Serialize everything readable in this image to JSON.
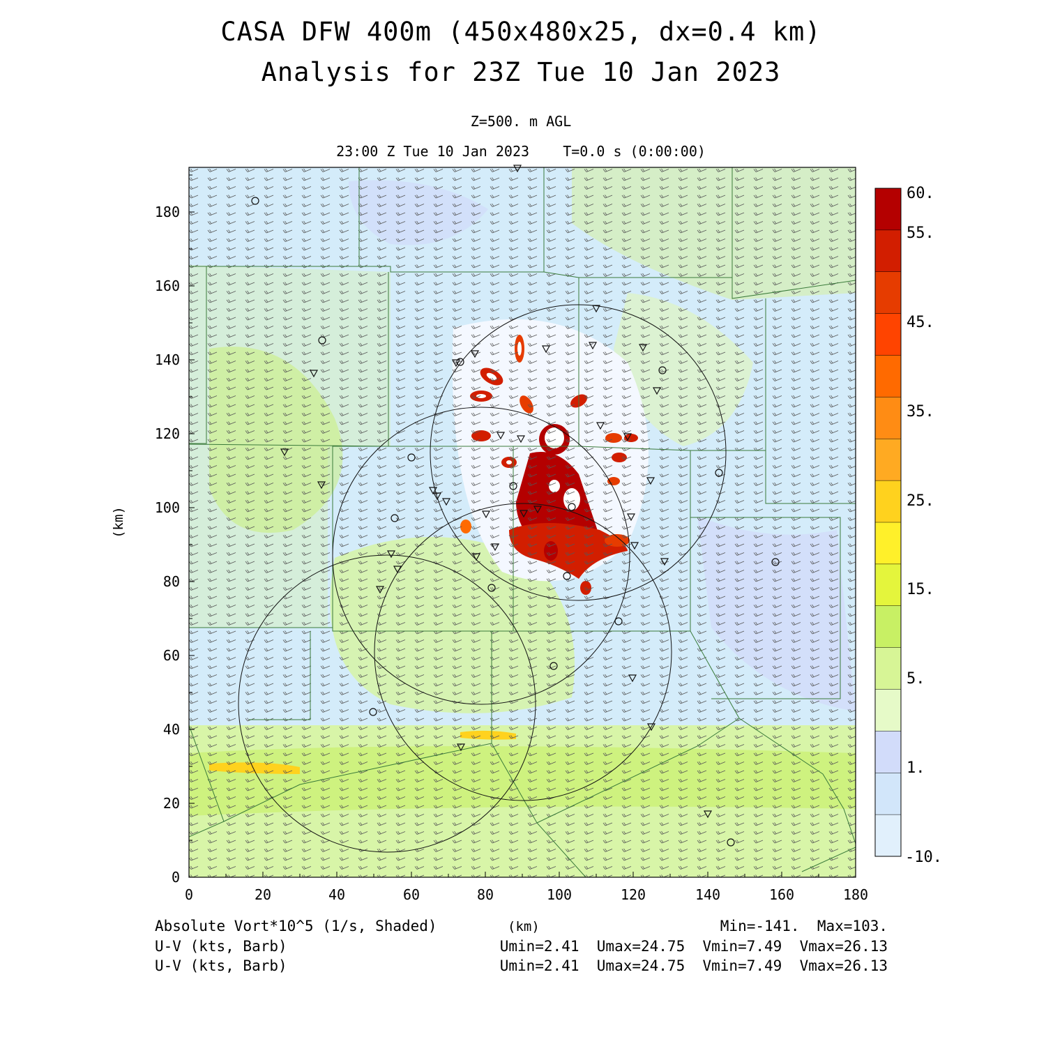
{
  "title": {
    "line1": "CASA DFW 400m (450x480x25, dx=0.4 km)",
    "line2": "Analysis for 23Z Tue 10 Jan 2023"
  },
  "subtitle": {
    "level": "Z=500. m AGL",
    "time": "23:00 Z Tue 10 Jan 2023    T=0.0 s (0:00:00)"
  },
  "axes": {
    "x_ticks": [
      "0",
      "20",
      "40",
      "60",
      "80",
      "100",
      "120",
      "140",
      "160",
      "180"
    ],
    "y_ticks": [
      "0",
      "20",
      "40",
      "60",
      "80",
      "100",
      "120",
      "140",
      "160",
      "180"
    ],
    "x_label": "(km)",
    "y_label": "(km)"
  },
  "colorbar": {
    "labels": [
      "60.",
      "55.",
      "45.",
      "35.",
      "25.",
      "15.",
      "5.",
      "1.",
      "-10."
    ],
    "colors": [
      "#b40000",
      "#d21e00",
      "#e63c00",
      "#ff4400",
      "#ff6a00",
      "#ff8c14",
      "#ffaa22",
      "#ffd21e",
      "#fff02a",
      "#e4f53c",
      "#c8f064",
      "#d7f596",
      "#e6fac8",
      "#d2dcfa",
      "#d2e6fa",
      "#e1f0fc"
    ]
  },
  "footer": {
    "field1": "Absolute Vort*10^5 (1/s, Shaded)",
    "field2": "U-V (kts, Barb)",
    "field3": "U-V (kts, Barb)",
    "stats_minmax": "Min=-141.  Max=103.",
    "stats_uv1": "Umin=2.41  Umax=24.75  Vmin=7.49  Vmax=26.13",
    "stats_uv2": "Umin=2.41  Umax=24.75  Vmin=7.49  Vmax=26.13"
  }
}
